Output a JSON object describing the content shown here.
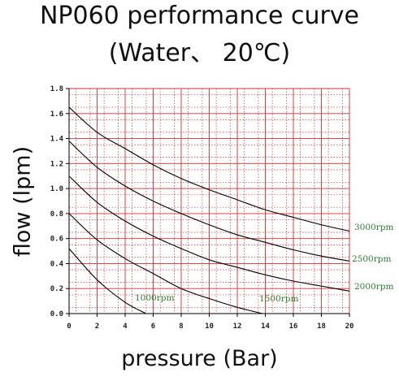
{
  "title_line1": "NP060 performance curve",
  "title_line2": "(Water、 20℃)",
  "chart_data": {
    "type": "line",
    "xlabel": "pressure (Bar)",
    "ylabel": "flow (lpm)",
    "xlim": [
      0,
      20
    ],
    "ylim": [
      0,
      1.8
    ],
    "xticks": [
      "0",
      "2",
      "4",
      "6",
      "8",
      "10",
      "12",
      "14",
      "16",
      "18",
      "20"
    ],
    "yticks": [
      "0.0",
      "0.2",
      "0.4",
      "0.6",
      "0.8",
      "1.0",
      "1.2",
      "1.4",
      "1.6",
      "1.8"
    ],
    "grid": true,
    "grid_color": "#d32f2f",
    "line_color": "#000000",
    "label_color": "#2e7d32",
    "series": [
      {
        "name": "3000rpm",
        "x": [
          0,
          2,
          4,
          6,
          8,
          10,
          12,
          14,
          16,
          18,
          20
        ],
        "y": [
          1.65,
          1.45,
          1.32,
          1.19,
          1.08,
          0.99,
          0.91,
          0.83,
          0.77,
          0.71,
          0.66
        ]
      },
      {
        "name": "2500rpm",
        "x": [
          0,
          2,
          4,
          6,
          8,
          10,
          12,
          14,
          16,
          18,
          20
        ],
        "y": [
          1.38,
          1.17,
          1.02,
          0.9,
          0.8,
          0.71,
          0.63,
          0.57,
          0.51,
          0.46,
          0.42
        ]
      },
      {
        "name": "2000rpm",
        "x": [
          0,
          2,
          4,
          6,
          8,
          10,
          12,
          14,
          16,
          18,
          20
        ],
        "y": [
          1.1,
          0.89,
          0.74,
          0.62,
          0.52,
          0.43,
          0.37,
          0.31,
          0.26,
          0.22,
          0.18
        ]
      },
      {
        "name": "1500rpm",
        "x": [
          0,
          2,
          4,
          6,
          8,
          10,
          12,
          13.8
        ],
        "y": [
          0.8,
          0.59,
          0.44,
          0.32,
          0.2,
          0.12,
          0.05,
          0.0
        ]
      },
      {
        "name": "1000rpm",
        "x": [
          0,
          2,
          4,
          5.5
        ],
        "y": [
          0.52,
          0.27,
          0.09,
          0.0
        ]
      }
    ]
  }
}
